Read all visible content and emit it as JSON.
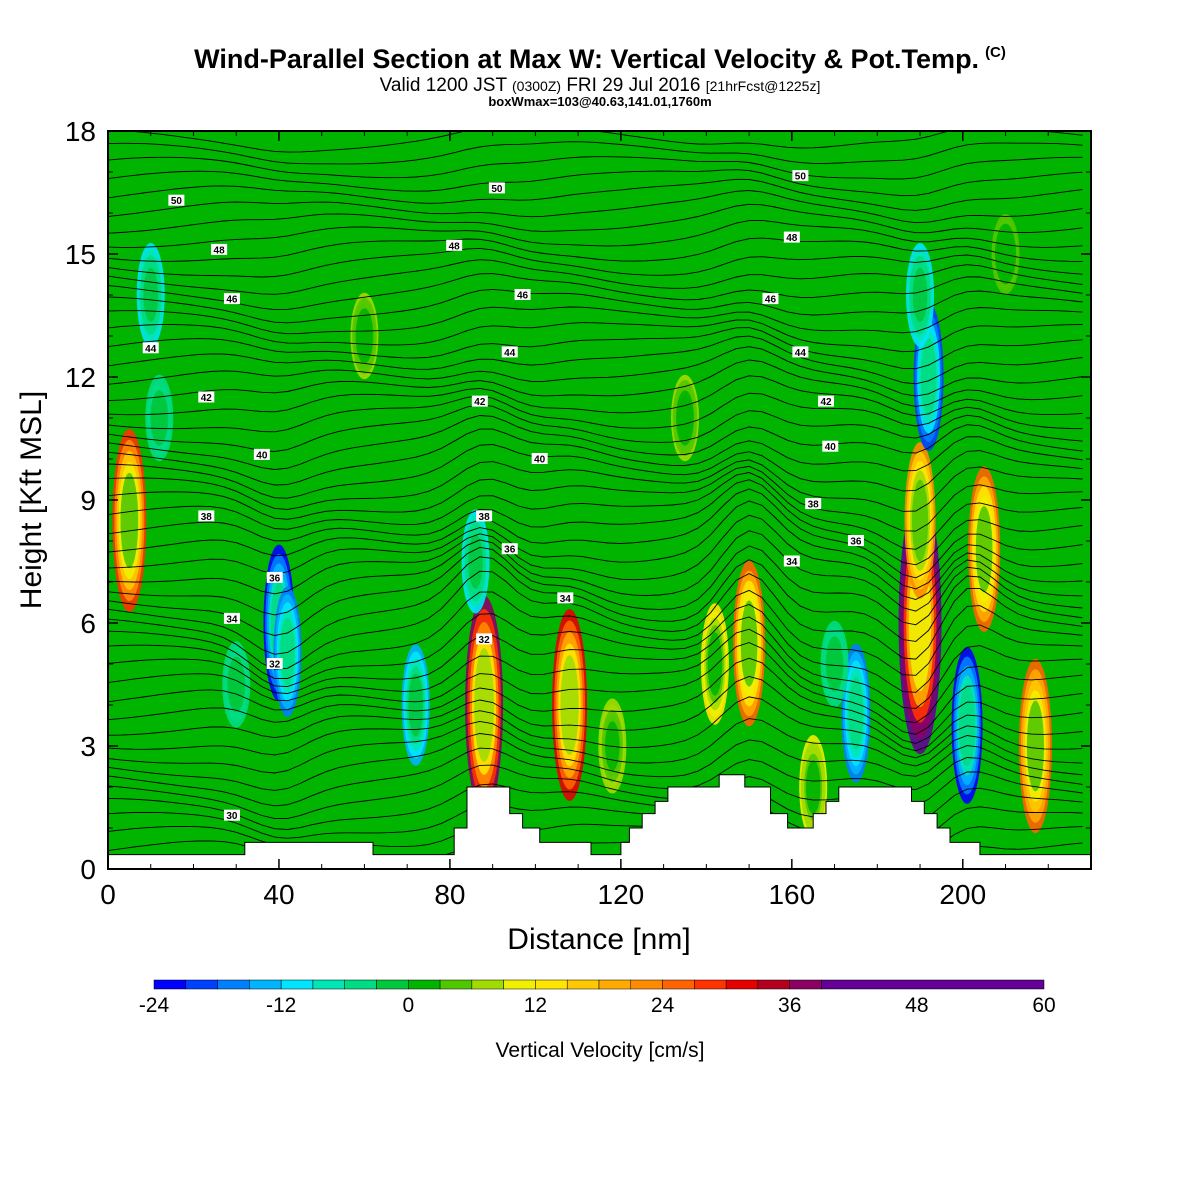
{
  "title": "Wind-Parallel Section at Max W: Vertical Velocity & Pot.Temp.",
  "title_mark": "(C)",
  "subtitle": {
    "valid": "Valid 1200 JST",
    "utc": "(0300Z)",
    "date": "FRI 29 Jul 2016",
    "fcst": "[21hrFcst@1225z]"
  },
  "subtitle2": "boxWmax=103@40.63,141.01,1760m",
  "chart_data": {
    "type": "heatmap",
    "xlabel": "Distance [nm]",
    "ylabel": "Height [Kft MSL]",
    "xlim": [
      0,
      230
    ],
    "ylim": [
      0,
      18
    ],
    "x_ticks": [
      0,
      40,
      80,
      120,
      160,
      200
    ],
    "y_ticks": [
      0,
      3,
      6,
      9,
      12,
      15,
      18
    ],
    "colorbar": {
      "label": "Vertical Velocity [cm/s]",
      "ticks": [
        -24,
        -12,
        0,
        12,
        24,
        36,
        48,
        60
      ],
      "range": [
        -24,
        60
      ],
      "step": 3,
      "colors": [
        "#0000ff",
        "#0040ff",
        "#0080ff",
        "#00b4ff",
        "#00e6ff",
        "#00e6b4",
        "#00dc82",
        "#00c83c",
        "#00b400",
        "#50c800",
        "#a0dc00",
        "#f0f000",
        "#ffe600",
        "#ffc800",
        "#ffaa00",
        "#ff8c00",
        "#ff6400",
        "#ff3200",
        "#e60000",
        "#b4001e",
        "#8c0064",
        "#640096"
      ]
    },
    "cells": [
      {
        "x": 5,
        "y": 8.5,
        "w": 28
      },
      {
        "x": 10,
        "y": 14,
        "w": -10
      },
      {
        "x": 12,
        "y": 11,
        "w": -6
      },
      {
        "x": 40,
        "y": 6,
        "w": -22
      },
      {
        "x": 42,
        "y": 5.3,
        "w": -16
      },
      {
        "x": 30,
        "y": 4.5,
        "w": -6
      },
      {
        "x": 72,
        "y": 4,
        "w": -14
      },
      {
        "x": 88,
        "y": 4,
        "w": 36
      },
      {
        "x": 86,
        "y": 7.5,
        "w": -10
      },
      {
        "x": 108,
        "y": 4,
        "w": 30
      },
      {
        "x": 118,
        "y": 3,
        "w": 8
      },
      {
        "x": 142,
        "y": 5,
        "w": 14
      },
      {
        "x": 150,
        "y": 5.5,
        "w": 24
      },
      {
        "x": 175,
        "y": 3.8,
        "w": -18
      },
      {
        "x": 170,
        "y": 5,
        "w": -6
      },
      {
        "x": 190,
        "y": 6,
        "w": 46
      },
      {
        "x": 190,
        "y": 8.5,
        "w": 22
      },
      {
        "x": 192,
        "y": 12,
        "w": -20
      },
      {
        "x": 190,
        "y": 14,
        "w": -10
      },
      {
        "x": 201,
        "y": 3.5,
        "w": -22
      },
      {
        "x": 205,
        "y": 7.8,
        "w": 24
      },
      {
        "x": 217,
        "y": 3,
        "w": 26
      },
      {
        "x": 165,
        "y": 2,
        "w": 10
      },
      {
        "x": 60,
        "y": 13,
        "w": 6
      },
      {
        "x": 135,
        "y": 11,
        "w": 6
      },
      {
        "x": 210,
        "y": 15,
        "w": 4
      }
    ],
    "theta_levels": [
      30,
      32,
      34,
      36,
      38,
      40,
      42,
      44,
      46,
      48,
      50
    ],
    "contour_labels": [
      {
        "x": 29,
        "y": 1.3,
        "text": "30"
      },
      {
        "x": 39,
        "y": 5.0,
        "text": "32"
      },
      {
        "x": 88,
        "y": 5.6,
        "text": "32"
      },
      {
        "x": 29,
        "y": 6.1,
        "text": "34"
      },
      {
        "x": 107,
        "y": 6.6,
        "text": "34"
      },
      {
        "x": 160,
        "y": 7.5,
        "text": "34"
      },
      {
        "x": 39,
        "y": 7.1,
        "text": "36"
      },
      {
        "x": 94,
        "y": 7.8,
        "text": "36"
      },
      {
        "x": 175,
        "y": 8.0,
        "text": "36"
      },
      {
        "x": 23,
        "y": 8.6,
        "text": "38"
      },
      {
        "x": 88,
        "y": 8.6,
        "text": "38"
      },
      {
        "x": 165,
        "y": 8.9,
        "text": "38"
      },
      {
        "x": 36,
        "y": 10.1,
        "text": "40"
      },
      {
        "x": 101,
        "y": 10.0,
        "text": "40"
      },
      {
        "x": 169,
        "y": 10.3,
        "text": "40"
      },
      {
        "x": 23,
        "y": 11.5,
        "text": "42"
      },
      {
        "x": 87,
        "y": 11.4,
        "text": "42"
      },
      {
        "x": 168,
        "y": 11.4,
        "text": "42"
      },
      {
        "x": 10,
        "y": 12.7,
        "text": "44"
      },
      {
        "x": 94,
        "y": 12.6,
        "text": "44"
      },
      {
        "x": 162,
        "y": 12.6,
        "text": "44"
      },
      {
        "x": 29,
        "y": 13.9,
        "text": "46"
      },
      {
        "x": 97,
        "y": 14.0,
        "text": "46"
      },
      {
        "x": 155,
        "y": 13.9,
        "text": "46"
      },
      {
        "x": 26,
        "y": 15.1,
        "text": "48"
      },
      {
        "x": 81,
        "y": 15.2,
        "text": "48"
      },
      {
        "x": 160,
        "y": 15.4,
        "text": "48"
      },
      {
        "x": 16,
        "y": 16.3,
        "text": "50"
      },
      {
        "x": 91,
        "y": 16.6,
        "text": "50"
      },
      {
        "x": 162,
        "y": 16.9,
        "text": "50"
      }
    ],
    "terrain": [
      [
        0,
        0.35
      ],
      [
        32,
        0.35
      ],
      [
        32,
        0.65
      ],
      [
        62,
        0.65
      ],
      [
        62,
        0.35
      ],
      [
        81,
        0.35
      ],
      [
        81,
        1.0
      ],
      [
        84,
        1.0
      ],
      [
        84,
        2.0
      ],
      [
        94,
        2.0
      ],
      [
        94,
        1.35
      ],
      [
        97,
        1.35
      ],
      [
        97,
        1.0
      ],
      [
        101,
        1.0
      ],
      [
        101,
        0.65
      ],
      [
        113,
        0.65
      ],
      [
        113,
        0.35
      ],
      [
        120,
        0.35
      ],
      [
        120,
        0.65
      ],
      [
        122,
        0.65
      ],
      [
        122,
        1.0
      ],
      [
        125,
        1.0
      ],
      [
        125,
        1.35
      ],
      [
        128,
        1.35
      ],
      [
        128,
        1.65
      ],
      [
        131,
        1.65
      ],
      [
        131,
        2.0
      ],
      [
        143,
        2.0
      ],
      [
        143,
        2.3
      ],
      [
        149,
        2.3
      ],
      [
        149,
        2.0
      ],
      [
        155,
        2.0
      ],
      [
        155,
        1.35
      ],
      [
        159,
        1.35
      ],
      [
        159,
        1.0
      ],
      [
        165,
        1.0
      ],
      [
        165,
        1.35
      ],
      [
        168,
        1.35
      ],
      [
        168,
        1.65
      ],
      [
        171,
        1.65
      ],
      [
        171,
        2.0
      ],
      [
        188,
        2.0
      ],
      [
        188,
        1.65
      ],
      [
        191,
        1.65
      ],
      [
        191,
        1.35
      ],
      [
        194,
        1.35
      ],
      [
        194,
        1.0
      ],
      [
        197,
        1.0
      ],
      [
        197,
        0.65
      ],
      [
        204,
        0.65
      ],
      [
        204,
        0.35
      ],
      [
        230,
        0.35
      ]
    ]
  }
}
